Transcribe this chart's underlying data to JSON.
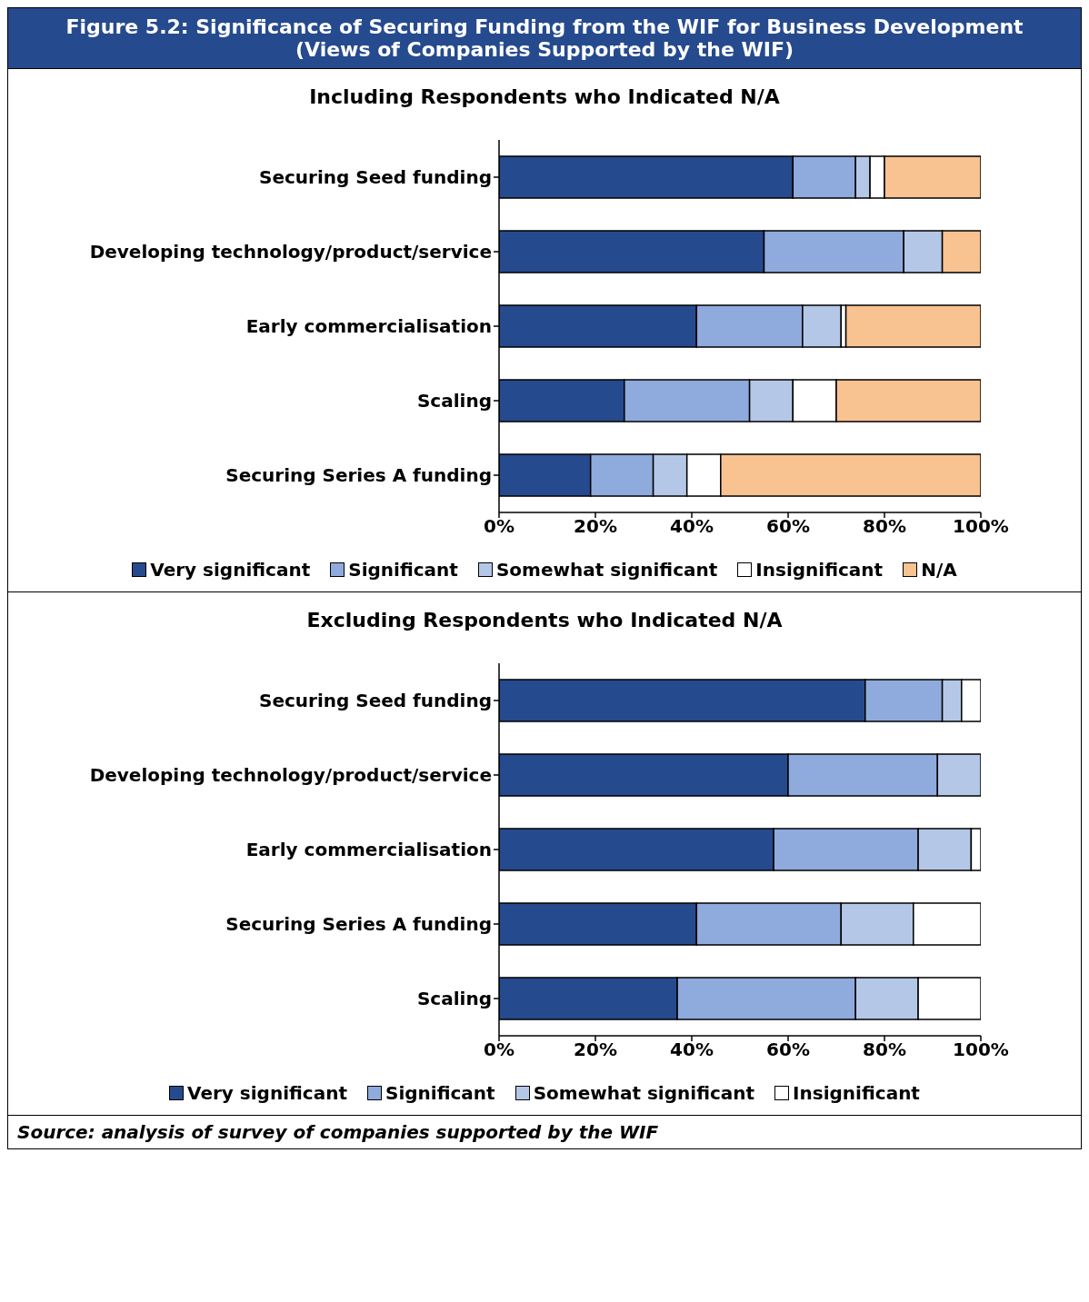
{
  "chart_data": [
    {
      "type": "bar",
      "orientation": "horizontal",
      "stacked": true,
      "title": "Figure 5.2: Significance of Securing Funding from the WIF for Business Development\n(Views of Companies Supported by the WIF)",
      "subtitle": "Including Respondents who Indicated N/A",
      "categories": [
        "Securing Seed funding",
        "Developing technology/product/service",
        "Early commercialisation",
        "Scaling",
        "Securing Series A funding"
      ],
      "xlim": [
        0,
        100
      ],
      "xticks": [
        {
          "value": 0,
          "label": "0%"
        },
        {
          "value": 20,
          "label": "20%"
        },
        {
          "value": 40,
          "label": "40%"
        },
        {
          "value": 60,
          "label": "60%"
        },
        {
          "value": 80,
          "label": "80%"
        },
        {
          "value": 100,
          "label": "100%"
        }
      ],
      "legend": "bottom",
      "series": [
        {
          "name": "Very significant",
          "color": "#264a8e",
          "values": [
            61,
            55,
            41,
            26,
            19
          ]
        },
        {
          "name": "Significant",
          "color": "#8faadc",
          "values": [
            13,
            29,
            22,
            26,
            13
          ]
        },
        {
          "name": "Somewhat significant",
          "color": "#b4c7e7",
          "values": [
            3,
            8,
            8,
            9,
            7
          ]
        },
        {
          "name": "Insignificant",
          "color": "#ffffff",
          "values": [
            3,
            0,
            1,
            9,
            7
          ]
        },
        {
          "name": "N/A",
          "color": "#f8c291",
          "values": [
            20,
            8,
            28,
            30,
            54
          ]
        }
      ]
    },
    {
      "type": "bar",
      "orientation": "horizontal",
      "stacked": true,
      "title": "Excluding Respondents who Indicated N/A",
      "categories": [
        "Securing Seed funding",
        "Developing technology/product/service",
        "Early commercialisation",
        "Securing Series A funding",
        "Scaling"
      ],
      "xlim": [
        0,
        100
      ],
      "xticks": [
        {
          "value": 0,
          "label": "0%"
        },
        {
          "value": 20,
          "label": "20%"
        },
        {
          "value": 40,
          "label": "40%"
        },
        {
          "value": 60,
          "label": "60%"
        },
        {
          "value": 80,
          "label": "80%"
        },
        {
          "value": 100,
          "label": "100%"
        }
      ],
      "legend": "bottom",
      "annotations": [
        "Source: analysis of survey of companies supported by the WIF"
      ],
      "series": [
        {
          "name": "Very significant",
          "color": "#264a8e",
          "values": [
            76,
            60,
            57,
            41,
            37
          ]
        },
        {
          "name": "Significant",
          "color": "#8faadc",
          "values": [
            16,
            31,
            30,
            30,
            37
          ]
        },
        {
          "name": "Somewhat significant",
          "color": "#b4c7e7",
          "values": [
            4,
            9,
            11,
            15,
            13
          ]
        },
        {
          "name": "Insignificant",
          "color": "#ffffff",
          "values": [
            4,
            0,
            2,
            14,
            13
          ]
        }
      ]
    }
  ]
}
